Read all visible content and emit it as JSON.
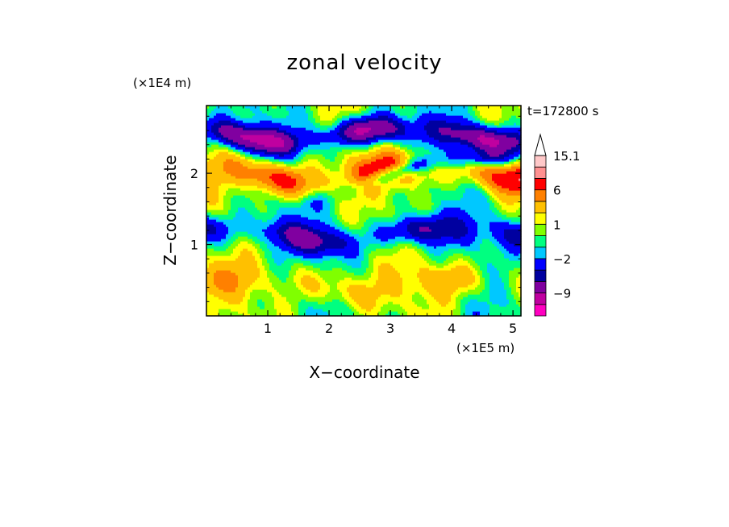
{
  "chart_data": {
    "type": "heatmap",
    "title": "zonal velocity",
    "xlabel": "X−coordinate",
    "ylabel": "Z−coordinate",
    "x_unit": "(×1E5 m)",
    "y_unit": "(×1E4 m)",
    "time_label": "t=172800 s",
    "xlim": [
      0,
      5.13
    ],
    "ylim": [
      0,
      2.95
    ],
    "x_ticks": [
      {
        "value": 1,
        "label": "1"
      },
      {
        "value": 2,
        "label": "2"
      },
      {
        "value": 3,
        "label": "3"
      },
      {
        "value": 4,
        "label": "4"
      },
      {
        "value": 5,
        "label": "5"
      }
    ],
    "y_ticks": [
      {
        "value": 1,
        "label": "1"
      },
      {
        "value": 2,
        "label": "2"
      }
    ],
    "colorbar": {
      "levels": [
        -15.1,
        -12,
        -9,
        -6,
        -4,
        -2,
        -1,
        0,
        1,
        2,
        4,
        6,
        9,
        12,
        15.1
      ],
      "colors": [
        "#ff00c0",
        "#c000a0",
        "#8000a0",
        "#0000a0",
        "#0000ff",
        "#00c8ff",
        "#00ff80",
        "#80ff00",
        "#ffff00",
        "#ffc000",
        "#ff8000",
        "#ff0000",
        "#ff9090",
        "#ffc8c8",
        "#ffffff"
      ],
      "labels": [
        {
          "value": 15.1,
          "label": "15.1"
        },
        {
          "value": 6,
          "label": "6"
        },
        {
          "value": 1,
          "label": "1"
        },
        {
          "value": -2,
          "label": "−2"
        },
        {
          "value": -9,
          "label": "−9"
        }
      ],
      "extend": "max"
    },
    "bands": [
      {
        "z": 2.55,
        "amp": -9,
        "width": 0.18
      },
      {
        "z": 2.0,
        "amp": 7,
        "width": 0.22
      },
      {
        "z": 1.85,
        "amp": -8,
        "width": 0.12,
        "xshift": 3.6
      },
      {
        "z": 1.15,
        "amp": -6,
        "width": 0.2
      },
      {
        "z": 0.45,
        "amp": 3,
        "width": 0.25
      }
    ]
  }
}
